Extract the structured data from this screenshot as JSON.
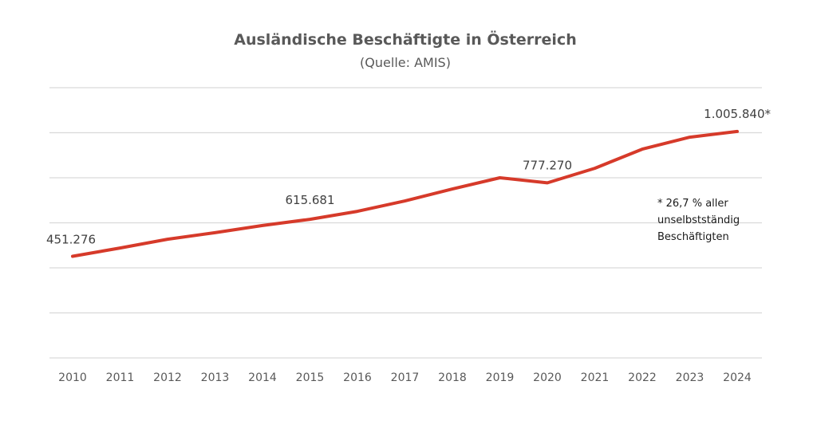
{
  "chart_data": {
    "type": "line",
    "title": "Ausländische Beschäftigte in Österreich",
    "subtitle": "(Quelle: AMIS)",
    "xlabel": "",
    "ylabel": "",
    "ylim": [
      0,
      1200000
    ],
    "grid": true,
    "gridline_step": 200000,
    "categories": [
      "2010",
      "2011",
      "2012",
      "2013",
      "2014",
      "2015",
      "2016",
      "2017",
      "2018",
      "2019",
      "2020",
      "2021",
      "2022",
      "2023",
      "2024"
    ],
    "series": [
      {
        "name": "Ausländische Beschäftigte",
        "color": "#d63a2a",
        "values": [
          451276,
          488000,
          527000,
          556000,
          588000,
          615681,
          651000,
          697000,
          750000,
          800000,
          777270,
          842000,
          927000,
          980000,
          1005840
        ]
      }
    ],
    "data_labels": [
      {
        "category": "2010",
        "text": "451.276"
      },
      {
        "category": "2015",
        "text": "615.681"
      },
      {
        "category": "2020",
        "text": "777.270"
      },
      {
        "category": "2024",
        "text": "1.005.840*"
      }
    ],
    "annotation": {
      "lines": [
        "* 26,7 % aller",
        "unselbstständig",
        "Beschäftigten"
      ]
    }
  }
}
